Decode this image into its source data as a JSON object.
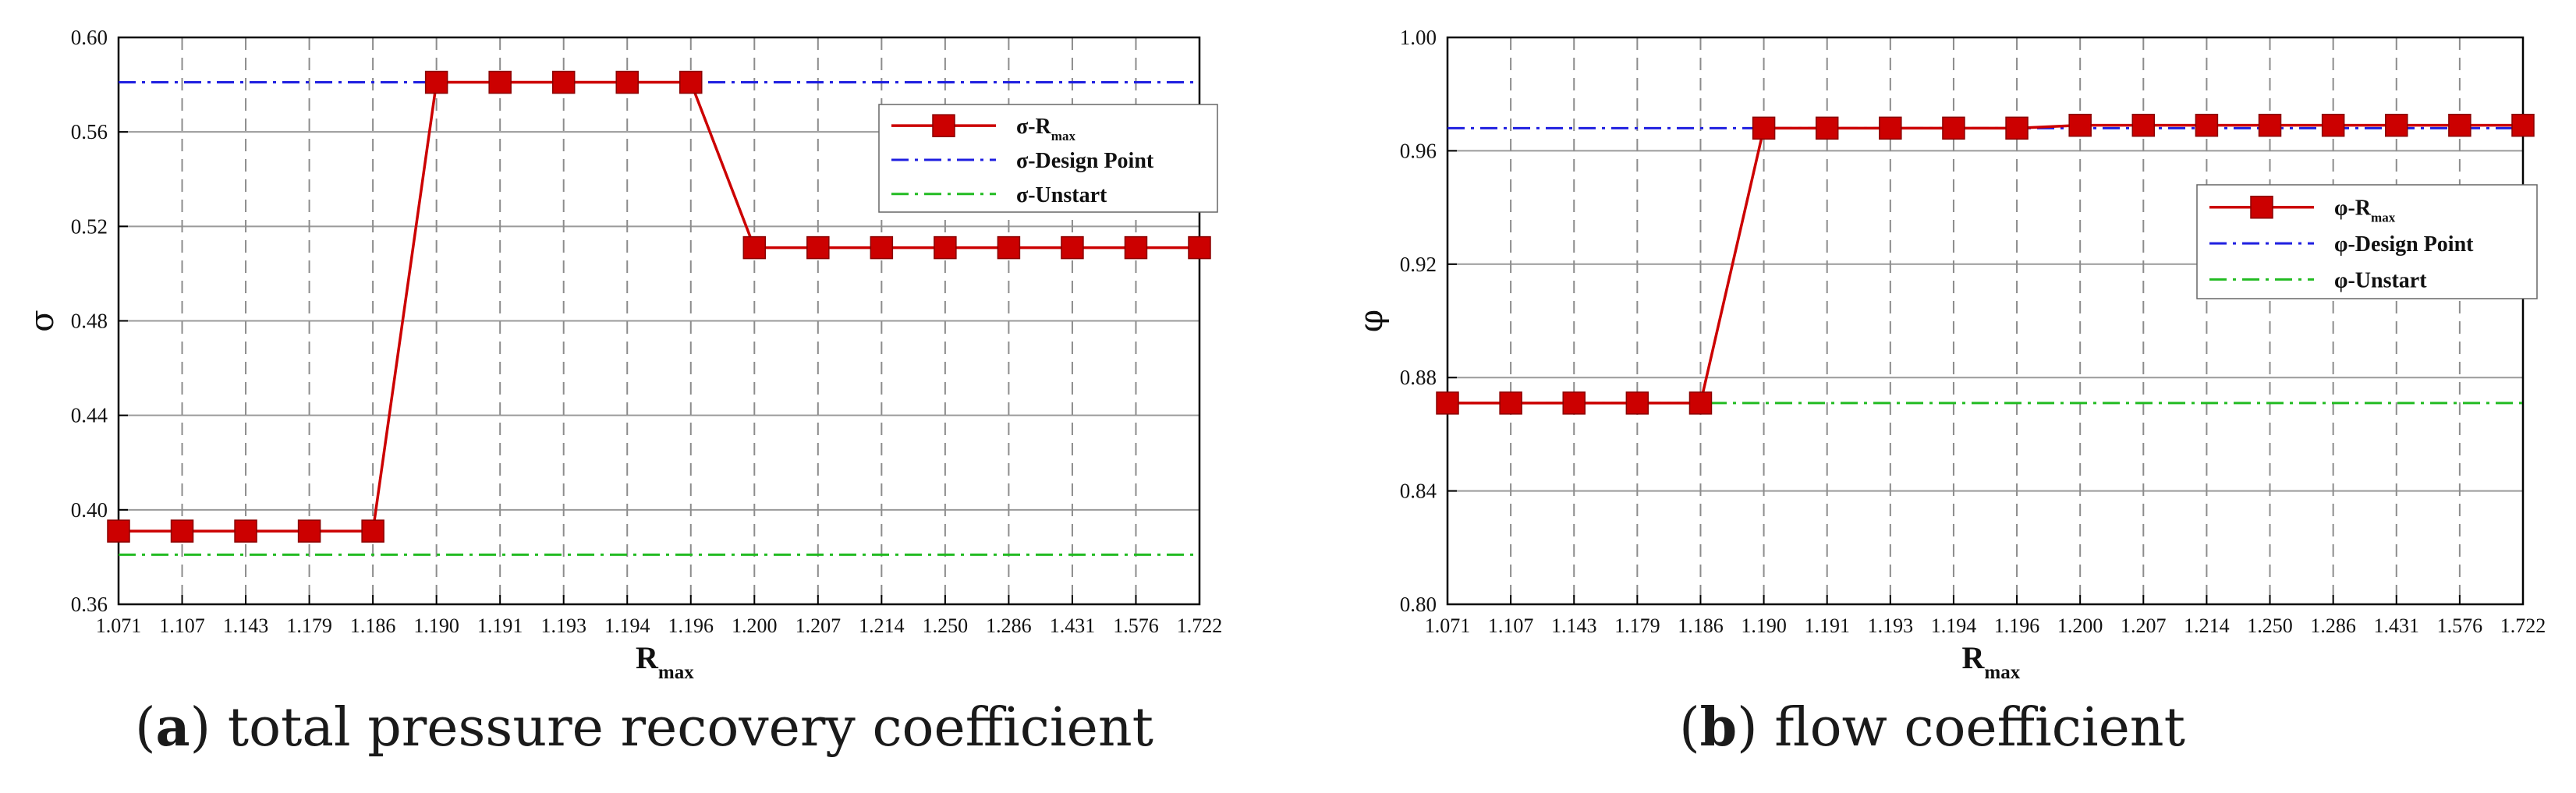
{
  "chart_data": [
    {
      "type": "line",
      "panel_label": "a",
      "caption": "total pressure recovery coefficient",
      "ylabel": "σ",
      "xlabel_main": "R",
      "xlabel_sub": "max",
      "categories": [
        "1.071",
        "1.107",
        "1.143",
        "1.179",
        "1.186",
        "1.190",
        "1.191",
        "1.193",
        "1.194",
        "1.196",
        "1.200",
        "1.207",
        "1.214",
        "1.250",
        "1.286",
        "1.431",
        "1.576",
        "1.722"
      ],
      "ylim": [
        0.36,
        0.6
      ],
      "yticks": [
        "0.36",
        "0.40",
        "0.44",
        "0.48",
        "0.52",
        "0.56",
        "0.60"
      ],
      "legend_position": "top-right",
      "series": [
        {
          "name": "σ-R",
          "name_sub": "max",
          "style": "solid-square-markers",
          "color": "#cc0000",
          "values": [
            0.391,
            0.391,
            0.391,
            0.391,
            0.391,
            0.581,
            0.581,
            0.581,
            0.581,
            0.581,
            0.511,
            0.511,
            0.511,
            0.511,
            0.511,
            0.511,
            0.511,
            0.511
          ]
        },
        {
          "name": "σ-Design Point",
          "name_sub": "",
          "style": "dash-dot",
          "color": "#1f1fe0",
          "constant": 0.581
        },
        {
          "name": "σ-Unstart",
          "name_sub": "",
          "style": "dash-dot",
          "color": "#22bb22",
          "constant": 0.381
        }
      ]
    },
    {
      "type": "line",
      "panel_label": "b",
      "caption": "flow coefficient",
      "ylabel": "φ",
      "xlabel_main": "R",
      "xlabel_sub": "max",
      "categories": [
        "1.071",
        "1.107",
        "1.143",
        "1.179",
        "1.186",
        "1.190",
        "1.191",
        "1.193",
        "1.194",
        "1.196",
        "1.200",
        "1.207",
        "1.214",
        "1.250",
        "1.286",
        "1.431",
        "1.576",
        "1.722"
      ],
      "ylim": [
        0.8,
        1.0
      ],
      "yticks": [
        "0.80",
        "0.84",
        "0.88",
        "0.92",
        "0.96",
        "1.00"
      ],
      "legend_position": "upper-right",
      "series": [
        {
          "name": "φ-R",
          "name_sub": "max",
          "style": "solid-square-markers",
          "color": "#cc0000",
          "values": [
            0.871,
            0.871,
            0.871,
            0.871,
            0.871,
            0.968,
            0.968,
            0.968,
            0.968,
            0.968,
            0.969,
            0.969,
            0.969,
            0.969,
            0.969,
            0.969,
            0.969,
            0.969
          ]
        },
        {
          "name": "φ-Design Point",
          "name_sub": "",
          "style": "dash-dot",
          "color": "#1f1fe0",
          "constant": 0.968
        },
        {
          "name": "φ-Unstart",
          "name_sub": "",
          "style": "dash-dot",
          "color": "#22bb22",
          "constant": 0.871
        }
      ]
    }
  ]
}
